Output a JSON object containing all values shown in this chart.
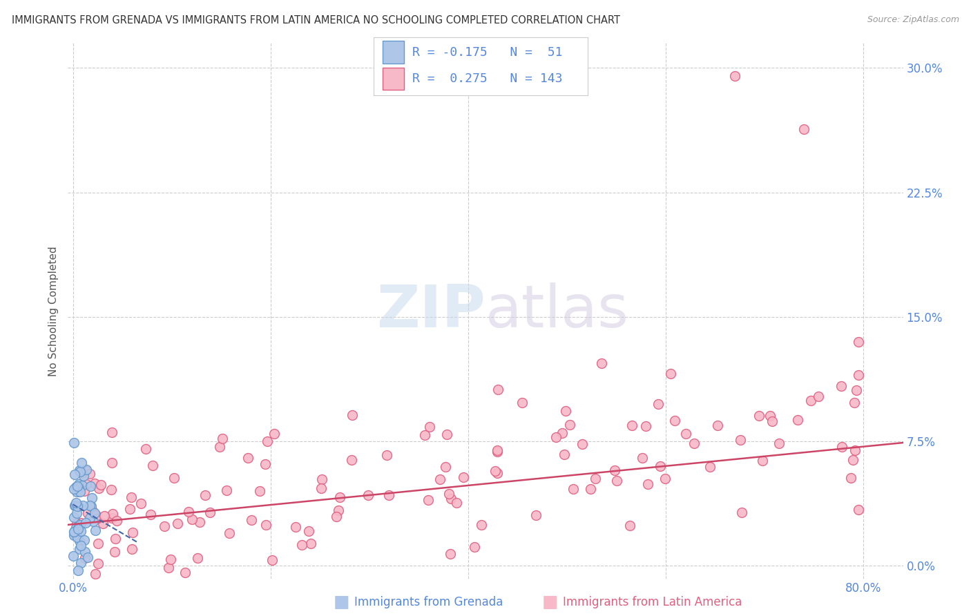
{
  "title": "IMMIGRANTS FROM GRENADA VS IMMIGRANTS FROM LATIN AMERICA NO SCHOOLING COMPLETED CORRELATION CHART",
  "source": "Source: ZipAtlas.com",
  "ylabel_left": "No Schooling Completed",
  "xlabel_label_blue": "Immigrants from Grenada",
  "xlabel_label_pink": "Immigrants from Latin America",
  "legend_blue_R": "-0.175",
  "legend_blue_N": "51",
  "legend_pink_R": "0.275",
  "legend_pink_N": "143",
  "blue_fill_color": "#aec6e8",
  "blue_edge_color": "#6699cc",
  "pink_fill_color": "#f7b8c8",
  "pink_edge_color": "#e06080",
  "blue_line_color": "#4466aa",
  "pink_line_color": "#cc4466",
  "title_color": "#333333",
  "axis_tick_color": "#5588dd",
  "grid_color": "#cccccc",
  "background_color": "#ffffff",
  "xlim": [
    -0.005,
    0.84
  ],
  "ylim": [
    -0.008,
    0.315
  ],
  "xticks": [
    0.0,
    0.2,
    0.4,
    0.6,
    0.8
  ],
  "yticks": [
    0.0,
    0.075,
    0.15,
    0.225,
    0.3
  ],
  "seed": 42,
  "blue_n": 51,
  "pink_n": 143
}
